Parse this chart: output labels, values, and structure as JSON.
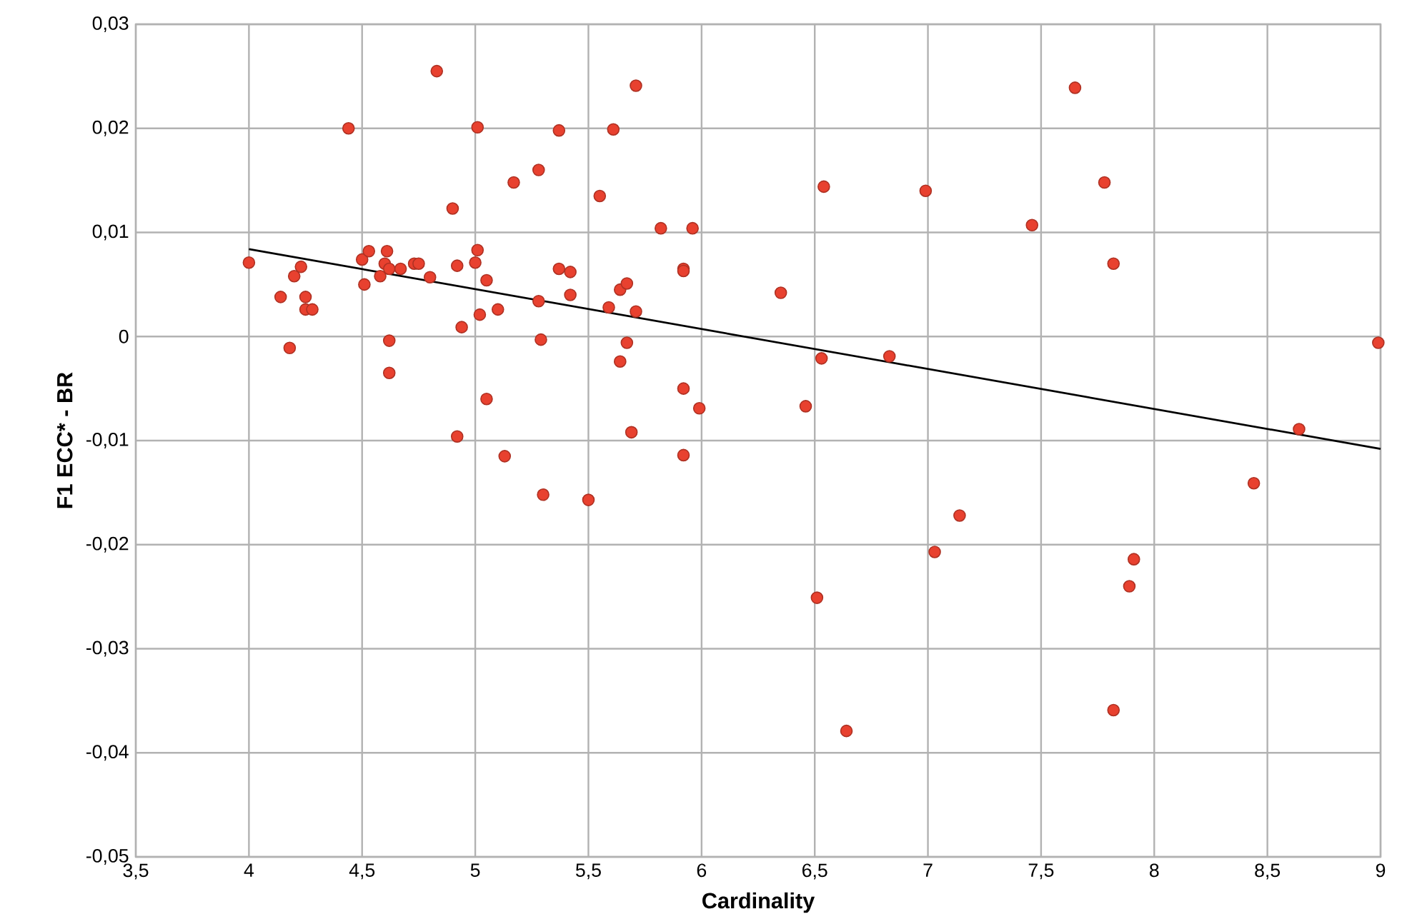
{
  "chart_data": {
    "type": "scatter",
    "xlabel": "Cardinality",
    "ylabel": "F1  ECC* - BR",
    "xlim": [
      3.5,
      9
    ],
    "ylim": [
      -0.05,
      0.03
    ],
    "xticks": [
      {
        "value": 3.5,
        "label": "3,5"
      },
      4,
      {
        "value": 4.5,
        "label": "4,5"
      },
      5,
      {
        "value": 5.5,
        "label": "5,5"
      },
      6,
      {
        "value": 6.5,
        "label": "6,5"
      },
      7,
      {
        "value": 7.5,
        "label": "7,5"
      },
      8,
      {
        "value": 8.5,
        "label": "8,5"
      },
      9
    ],
    "yticks": [
      {
        "value": -0.05,
        "label": "-0,05"
      },
      {
        "value": -0.04,
        "label": "-0,04"
      },
      {
        "value": -0.03,
        "label": "-0,03"
      },
      {
        "value": -0.02,
        "label": "-0,02"
      },
      {
        "value": -0.01,
        "label": "-0,01"
      },
      0,
      {
        "value": 0.01,
        "label": "0,01"
      },
      {
        "value": 0.02,
        "label": "0,02"
      },
      {
        "value": 0.03,
        "label": "0,03"
      }
    ],
    "grid": true,
    "marker": "circle",
    "series": [
      {
        "color": "#e8412f",
        "x": [
          4.0,
          4.14,
          4.18,
          4.2,
          4.23,
          4.25,
          4.25,
          4.28,
          4.44,
          4.5,
          4.51,
          4.53,
          4.58,
          4.6,
          4.61,
          4.62,
          4.62,
          4.62,
          4.67,
          4.73,
          4.75,
          4.8,
          4.83,
          4.9,
          4.92,
          4.92,
          4.94,
          5.0,
          5.01,
          5.01,
          5.02,
          5.05,
          5.05,
          5.1,
          5.13,
          5.17,
          5.28,
          5.28,
          5.29,
          5.3,
          5.37,
          5.37,
          5.42,
          5.42,
          5.5,
          5.55,
          5.59,
          5.61,
          5.64,
          5.67,
          5.67,
          5.64,
          5.71,
          5.71,
          5.69,
          5.82,
          5.92,
          5.92,
          5.92,
          5.92,
          5.96,
          5.99,
          6.35,
          6.54,
          6.53,
          6.46,
          6.51,
          6.64,
          6.99,
          6.83,
          7.14,
          7.03,
          7.46,
          7.65,
          7.78,
          7.82,
          7.91,
          7.89,
          7.82,
          8.44,
          8.64,
          8.99
        ],
        "values": [
          0.0071,
          0.0038,
          -0.0011,
          0.0058,
          0.0067,
          0.0038,
          0.0026,
          0.0026,
          0.02,
          0.0074,
          0.005,
          0.0082,
          0.0058,
          0.007,
          0.0082,
          0.0065,
          -0.0004,
          -0.0035,
          0.0065,
          0.007,
          0.007,
          0.0057,
          0.0255,
          0.0123,
          0.0068,
          -0.0096,
          0.0009,
          0.0071,
          0.0083,
          0.0201,
          0.0021,
          0.0054,
          -0.006,
          0.0026,
          -0.0115,
          0.0148,
          0.016,
          0.0034,
          -0.0003,
          -0.0152,
          0.0198,
          0.0065,
          0.004,
          0.0062,
          -0.0157,
          0.0135,
          0.0028,
          0.0199,
          0.0045,
          0.0051,
          -0.0006,
          -0.0024,
          0.0241,
          0.0024,
          -0.0092,
          0.0104,
          0.0065,
          0.0063,
          -0.005,
          -0.0114,
          0.0104,
          -0.0069,
          0.0042,
          0.0144,
          -0.0021,
          -0.0067,
          -0.0251,
          -0.0379,
          0.014,
          -0.0019,
          -0.0172,
          -0.0207,
          0.0107,
          0.0239,
          0.0148,
          0.007,
          -0.0214,
          -0.024,
          -0.0359,
          -0.0141,
          -0.0089,
          -0.0006
        ]
      },
      {
        "type": "line",
        "color": "#000000",
        "marker": "none",
        "x": [
          4.0,
          9.0
        ],
        "values": [
          0.0084,
          -0.0108
        ]
      }
    ]
  }
}
